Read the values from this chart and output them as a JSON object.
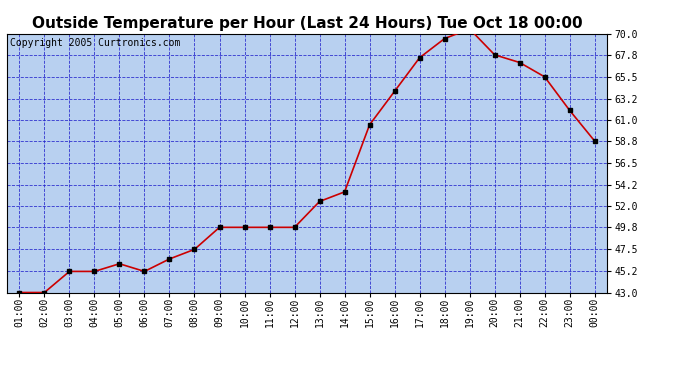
{
  "title": "Outside Temperature per Hour (Last 24 Hours) Tue Oct 18 00:00",
  "copyright": "Copyright 2005 Curtronics.com",
  "hours": [
    "01:00",
    "02:00",
    "03:00",
    "04:00",
    "05:00",
    "06:00",
    "07:00",
    "08:00",
    "09:00",
    "10:00",
    "11:00",
    "12:00",
    "13:00",
    "14:00",
    "15:00",
    "16:00",
    "17:00",
    "18:00",
    "19:00",
    "20:00",
    "21:00",
    "22:00",
    "23:00",
    "00:00"
  ],
  "temps_actual": [
    43.0,
    43.0,
    45.2,
    45.2,
    46.0,
    45.2,
    46.5,
    47.5,
    49.8,
    49.8,
    49.8,
    49.8,
    52.5,
    53.5,
    60.5,
    64.0,
    67.5,
    69.5,
    70.5,
    67.8,
    67.0,
    65.5,
    62.0,
    58.8
  ],
  "ylim": [
    43.0,
    70.0
  ],
  "yticks": [
    43.0,
    45.2,
    47.5,
    49.8,
    52.0,
    54.2,
    56.5,
    58.8,
    61.0,
    63.2,
    65.5,
    67.8,
    70.0
  ],
  "line_color": "#cc0000",
  "marker_color": "#000000",
  "bg_color": "#b8d0f0",
  "grid_color": "#2222cc",
  "title_fontsize": 11,
  "tick_fontsize": 7,
  "copyright_fontsize": 7
}
